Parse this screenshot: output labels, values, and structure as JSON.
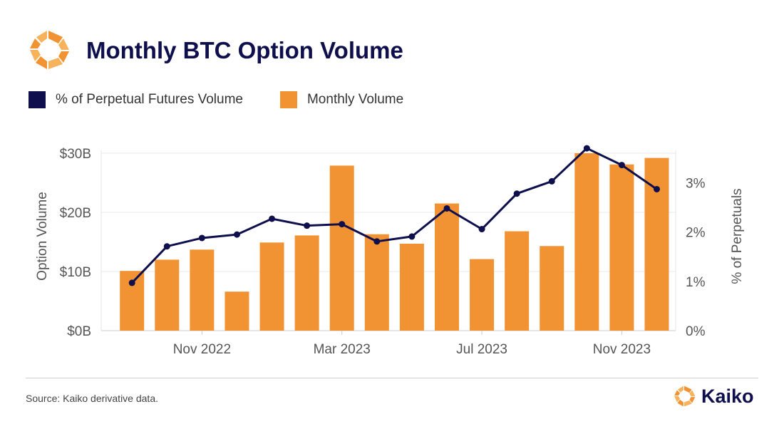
{
  "header": {
    "title": "Monthly BTC Option Volume",
    "logo_icon": "kaiko-logo-icon"
  },
  "legend": {
    "items": [
      {
        "label": "% of Perpetual Futures Volume",
        "color": "#0f0f4d"
      },
      {
        "label": "Monthly Volume",
        "color": "#f29333"
      }
    ]
  },
  "colors": {
    "bar": "#f29333",
    "line": "#0f0f4d",
    "brand_orange": "#f29333",
    "brand_navy": "#0f0f4d"
  },
  "chart_data": {
    "type": "bar",
    "categories": [
      "2022-09",
      "2022-10",
      "2022-11",
      "2022-12",
      "2023-01",
      "2023-02",
      "2023-03",
      "2023-04",
      "2023-05",
      "2023-06",
      "2023-07",
      "2023-08",
      "2023-09",
      "2023-10",
      "2023-11",
      "2023-12"
    ],
    "x_tick_labels": [
      {
        "label": "Nov 2022",
        "at": "2022-11"
      },
      {
        "label": "Mar 2023",
        "at": "2023-03"
      },
      {
        "label": "Jul 2023",
        "at": "2023-07"
      },
      {
        "label": "Nov 2023",
        "at": "2023-11"
      }
    ],
    "series": [
      {
        "name": "Monthly Volume",
        "type": "bar",
        "axis": "left",
        "unit": "USD billions",
        "values": [
          10.1,
          12.0,
          13.7,
          6.6,
          14.9,
          16.1,
          27.9,
          16.3,
          14.7,
          21.5,
          12.1,
          16.8,
          14.3,
          30.0,
          28.1,
          29.2
        ]
      },
      {
        "name": "% of Perpetual Futures Volume",
        "type": "line",
        "axis": "right",
        "unit": "percent",
        "values": [
          0.97,
          1.71,
          1.88,
          1.95,
          2.27,
          2.13,
          2.16,
          1.81,
          1.91,
          2.48,
          2.06,
          2.78,
          3.03,
          3.7,
          3.36,
          2.87
        ]
      }
    ],
    "y_left": {
      "label": "Option Volume",
      "ticks": [
        "$0B",
        "$10B",
        "$20B",
        "$30B"
      ],
      "tick_values": [
        0,
        10,
        20,
        30
      ],
      "range": [
        0,
        30
      ]
    },
    "y_right": {
      "label": "% of Perpetuals",
      "ticks": [
        "0%",
        "1%",
        "2%",
        "3%"
      ],
      "tick_values": [
        0,
        1,
        2,
        3
      ],
      "range": [
        0,
        3.6
      ]
    },
    "grid": true,
    "legend_position": "top-left"
  },
  "footer": {
    "source": "Source: Kaiko derivative data.",
    "brand_name": "Kaiko",
    "brand_icon": "kaiko-logo-icon"
  }
}
